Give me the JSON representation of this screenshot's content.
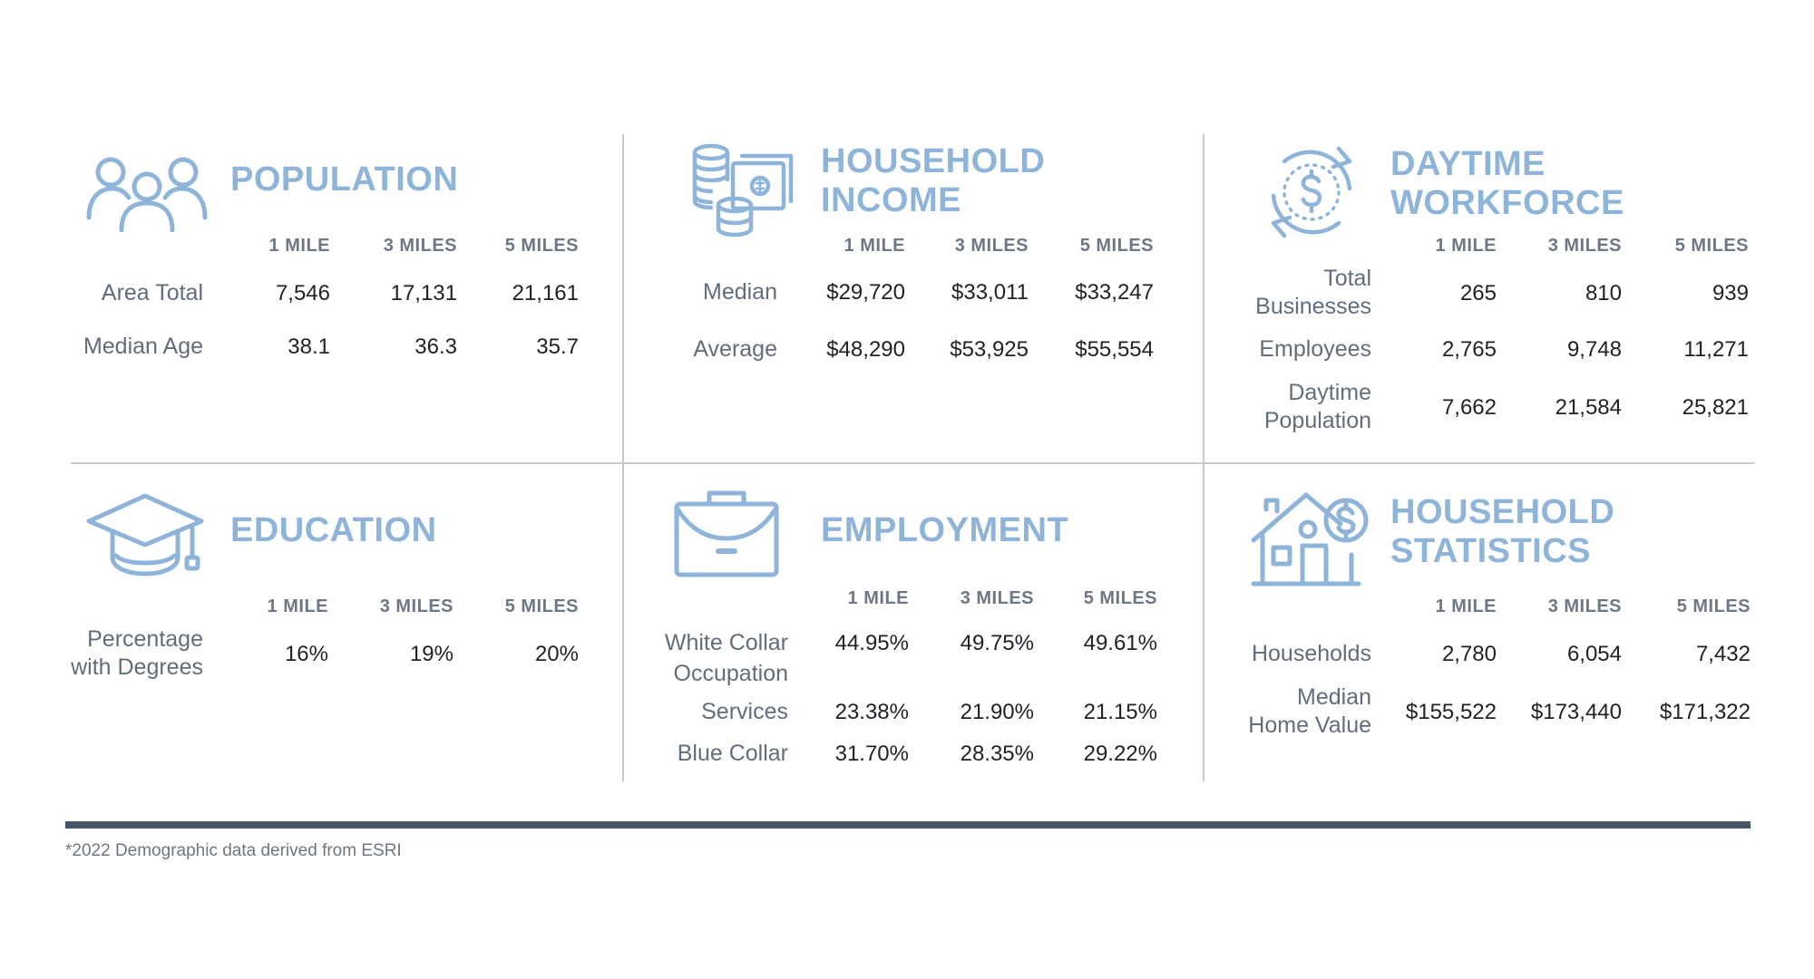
{
  "colors": {
    "accent": "#8fb4da",
    "rule": "#445566"
  },
  "footnote": "*2022 Demographic data derived from ESRI",
  "sections": {
    "population": {
      "title1": "POPULATION",
      "icon": "people-group-icon",
      "headers": [
        "1 MILE",
        "3 MILES",
        "5 MILES"
      ],
      "rows": [
        {
          "label": "Area Total",
          "values": [
            "7,546",
            "17,131",
            "21,161"
          ]
        },
        {
          "label": "Median Age",
          "values": [
            "38.1",
            "36.3",
            "35.7"
          ]
        }
      ]
    },
    "household_income": {
      "title1": "HOUSEHOLD",
      "title2": "INCOME",
      "icon": "coins-and-cash-icon",
      "headers": [
        "1 MILE",
        "3 MILES",
        "5 MILES"
      ],
      "rows": [
        {
          "label": "Median",
          "values": [
            "$29,720",
            "$33,011",
            "$33,247"
          ]
        },
        {
          "label": "Average",
          "values": [
            "$48,290",
            "$53,925",
            "$55,554"
          ]
        }
      ]
    },
    "daytime_workforce": {
      "title1": "DAYTIME",
      "title2": "WORKFORCE",
      "icon": "dollar-cycle-icon",
      "headers": [
        "1 MILE",
        "3 MILES",
        "5 MILES"
      ],
      "rows": [
        {
          "label1": "Total",
          "label2": "Businesses",
          "values": [
            "265",
            "810",
            "939"
          ]
        },
        {
          "label1": "Employees",
          "values": [
            "2,765",
            "9,748",
            "11,271"
          ]
        },
        {
          "label1": "Daytime",
          "label2": "Population",
          "values": [
            "7,662",
            "21,584",
            "25,821"
          ]
        }
      ]
    },
    "education": {
      "title1": "EDUCATION",
      "icon": "graduation-cap-icon",
      "headers": [
        "1 MILE",
        "3 MILES",
        "5 MILES"
      ],
      "rows": [
        {
          "label1": "Percentage",
          "label2": "with Degrees",
          "values": [
            "16%",
            "19%",
            "20%"
          ]
        }
      ]
    },
    "employment": {
      "title1": "EMPLOYMENT",
      "icon": "briefcase-icon",
      "headers": [
        "1 MILE",
        "3 MILES",
        "5 MILES"
      ],
      "rows": [
        {
          "label1": "White Collar",
          "label2": "Occupation",
          "values": [
            "44.95%",
            "49.75%",
            "49.61%"
          ]
        },
        {
          "label1": "Services",
          "values": [
            "23.38%",
            "21.90%",
            "21.15%"
          ]
        },
        {
          "label1": "Blue Collar",
          "values": [
            "31.70%",
            "28.35%",
            "29.22%"
          ]
        }
      ]
    },
    "household_statistics": {
      "title1": "HOUSEHOLD",
      "title2": "STATISTICS",
      "icon": "house-dollar-icon",
      "headers": [
        "1 MILE",
        "3 MILES",
        "5 MILES"
      ],
      "rows": [
        {
          "label1": "Households",
          "values": [
            "2,780",
            "6,054",
            "7,432"
          ]
        },
        {
          "label1": "Median",
          "label2": "Home Value",
          "values": [
            "$155,522",
            "$173,440",
            "$171,322"
          ]
        }
      ]
    }
  }
}
